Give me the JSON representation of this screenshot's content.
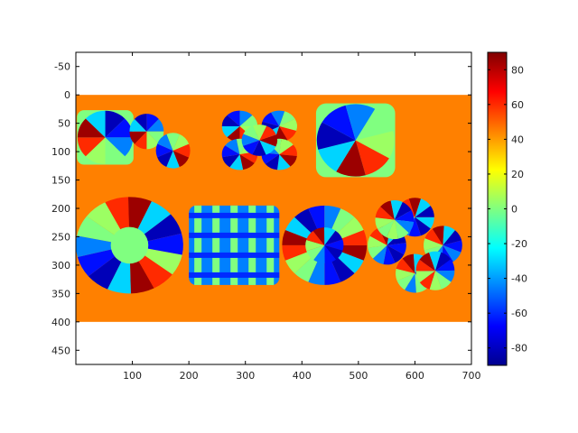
{
  "chart_data": {
    "type": "heatmap",
    "title": "",
    "xlabel": "",
    "ylabel": "",
    "xlim": [
      0,
      700
    ],
    "ylim": [
      475,
      -75
    ],
    "image_extent": {
      "x": [
        0,
        700
      ],
      "y": [
        0,
        400
      ]
    },
    "background_value": 45,
    "x_ticks": [
      "100",
      "200",
      "300",
      "400",
      "500",
      "600",
      "700"
    ],
    "y_ticks": [
      "-50",
      "0",
      "50",
      "100",
      "150",
      "200",
      "250",
      "300",
      "350",
      "400",
      "450"
    ],
    "colorbar": {
      "colormap": "jet",
      "range": [
        -90,
        90
      ],
      "ticks": [
        "80",
        "60",
        "40",
        "20",
        "0",
        "-20",
        "-40",
        "-60",
        "-80"
      ]
    },
    "regions": [
      {
        "name": "pattern-1",
        "center": [
          52,
          75
        ],
        "half_width": 50,
        "half_height": 48,
        "kind": "bowtie"
      },
      {
        "name": "pattern-2",
        "center": [
          150,
          80
        ],
        "half_width": 55,
        "half_height": 52,
        "kind": "bowtie-pair"
      },
      {
        "name": "pattern-3",
        "center": [
          325,
          80
        ],
        "half_width": 70,
        "half_height": 55,
        "kind": "bowtie-grid"
      },
      {
        "name": "pattern-4",
        "center": [
          495,
          80
        ],
        "half_width": 70,
        "half_height": 65,
        "kind": "bowtie-rotated"
      },
      {
        "name": "pattern-5",
        "center": [
          95,
          265
        ],
        "half_width": 95,
        "half_height": 85,
        "kind": "disk"
      },
      {
        "name": "pattern-6",
        "center": [
          280,
          265
        ],
        "half_width": 80,
        "half_height": 70,
        "kind": "lattice"
      },
      {
        "name": "pattern-7",
        "center": [
          440,
          265
        ],
        "half_width": 75,
        "half_height": 70,
        "kind": "flower"
      },
      {
        "name": "pattern-8",
        "center": [
          600,
          265
        ],
        "half_width": 90,
        "half_height": 90,
        "kind": "flower-cluster"
      }
    ]
  }
}
